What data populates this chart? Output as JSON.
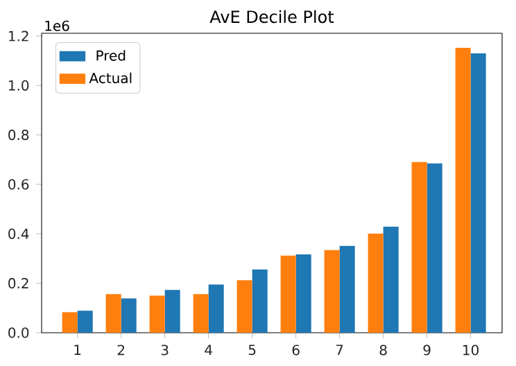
{
  "chart_data": {
    "type": "bar",
    "title": "AvE Decile Plot",
    "categories": [
      "1",
      "2",
      "3",
      "4",
      "5",
      "6",
      "7",
      "8",
      "9",
      "10"
    ],
    "series": [
      {
        "name": "Pred",
        "color": "#1f77b4",
        "values": [
          0.089,
          0.139,
          0.173,
          0.195,
          0.256,
          0.317,
          0.351,
          0.429,
          0.685,
          1.13
        ]
      },
      {
        "name": "Actual",
        "color": "#ff7f0e",
        "values": [
          0.083,
          0.156,
          0.15,
          0.156,
          0.212,
          0.312,
          0.334,
          0.401,
          0.69,
          1.152
        ]
      }
    ],
    "ylim": [
      0,
      1.211
    ],
    "yticks": [
      {
        "value": 0,
        "label": "0.0"
      },
      0.2,
      0.4,
      0.6,
      0.8,
      {
        "value": 1,
        "label": "1.0"
      },
      1.2
    ],
    "annotations": [
      "1e6"
    ],
    "legend": "top left"
  }
}
